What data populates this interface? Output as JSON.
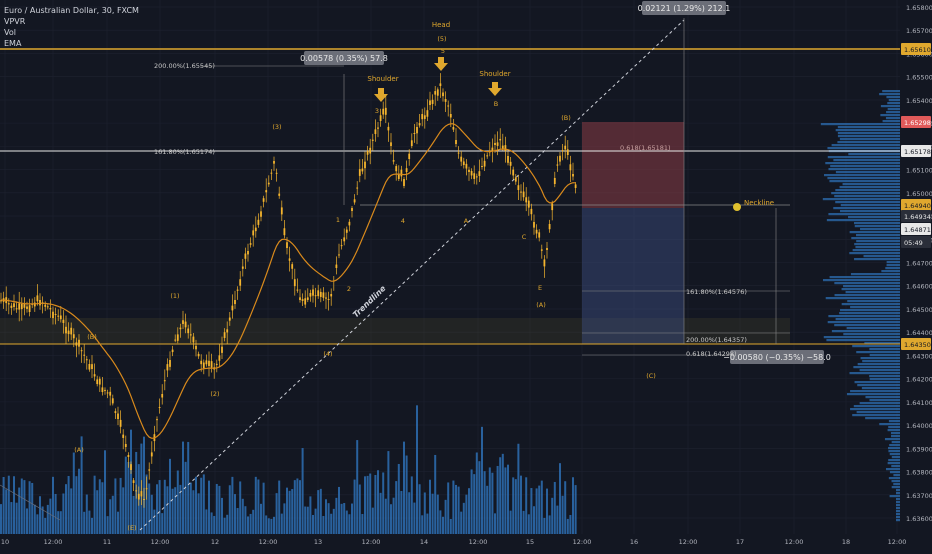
{
  "legend": {
    "symbol": "Euro / Australian Dollar, 30, FXCM",
    "indicators": [
      "VPVR",
      "Vol",
      "EMA"
    ]
  },
  "colors": {
    "background": "#131722",
    "candle": "#f5b52e",
    "ema": "#d98a1c",
    "volume": "#2e6fb3",
    "profile": "#2e6fb3",
    "resistance": "#e0a82e",
    "white_line": "#e8e8e8",
    "stop_zone": "#7a3a44",
    "target_zone": "#2f3e66",
    "axis_text": "#b2b5be",
    "price_red": "#e05a5a"
  },
  "axis": {
    "y_ticks": [
      "1.65800",
      "1.65700",
      "1.65600",
      "1.65500",
      "1.65400",
      "1.65300",
      "1.65200",
      "1.65100",
      "1.65000",
      "1.64900",
      "1.64800",
      "1.64700",
      "1.64600",
      "1.64500",
      "1.64400",
      "1.64300",
      "1.64200",
      "1.64100",
      "1.64000",
      "1.63900",
      "1.63800",
      "1.63700",
      "1.63600"
    ],
    "x_ticks": [
      "10",
      "12:00",
      "11",
      "12:00",
      "12",
      "12:00",
      "13",
      "12:00",
      "14",
      "12:00",
      "15",
      "12:00",
      "16",
      "12:00",
      "17",
      "12:00",
      "18",
      "12:00",
      "19",
      "12:00",
      "20",
      "12:0"
    ],
    "price_labels": [
      {
        "text": "1.65610",
        "kind": "gold"
      },
      {
        "text": "1.65298",
        "kind": "red"
      },
      {
        "text": "1.65178",
        "kind": "white"
      },
      {
        "text": "1.64940",
        "kind": "gold"
      },
      {
        "text": "1.64934",
        "kind": "dark"
      },
      {
        "text": "1.64871",
        "kind": "white"
      },
      {
        "text": "05:49",
        "kind": "dark"
      },
      {
        "text": "1.64350",
        "kind": "gold"
      }
    ]
  },
  "annotations": {
    "wave_labels": [
      "(1)",
      "(2)",
      "(3)",
      "(4)",
      "(5)",
      "(A)",
      "(B)",
      "(C)",
      "(E)",
      "(A)",
      "(B)",
      "1",
      "2",
      "3",
      "4",
      "5",
      "A",
      "B",
      "C",
      "E"
    ],
    "head": "Head",
    "shoulder_left": "Shoulder",
    "shoulder_right": "Shoulder",
    "neckline": "Neckline",
    "trendline": "Trendline",
    "fib_200_top": "200.00%(1.65545)",
    "fib_1618_top": "161.80%(1.65174)",
    "fib_0618_box": "0.618(1.65181)",
    "fib_1618_bottom": "161.80%(1.64576)",
    "fib_200_bottom": "200.00%(1.64357)",
    "fib_0618_bottom": "0.618(1.64298)",
    "measure_top": "0.00578 (0.35%) 57.8",
    "measure_head": "0.02121 (1.29%) 212.1",
    "measure_bottom": "−0.00580 (−0.35%) −58.0"
  }
}
